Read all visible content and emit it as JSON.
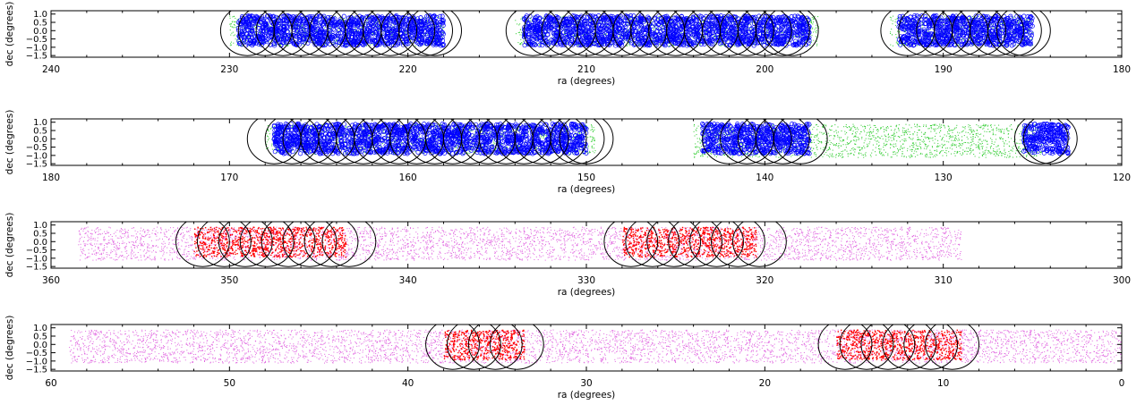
{
  "chart_data": [
    {
      "type": "scatter",
      "xlabel": "ra (degrees)",
      "ylabel": "dec (degrees)",
      "xlim": [
        240,
        180
      ],
      "ylim": [
        -1.6,
        1.2
      ],
      "x_ticks": [
        240,
        230,
        220,
        210,
        200,
        190,
        180
      ],
      "y_ticks": [
        1.0,
        0.5,
        0.0,
        -0.5,
        -1.0,
        -1.5
      ],
      "y_tick_labels": [
        "1.0",
        "0.5",
        "0.0",
        "−0.5",
        "−1.0",
        "−1.5"
      ],
      "background_fields": [
        {
          "ra_min": 218,
          "ra_max": 230,
          "dec_min": -0.9,
          "dec_max": 0.9,
          "color": "#2ecc2e"
        },
        {
          "ra_min": 197,
          "ra_max": 214,
          "dec_min": -0.9,
          "dec_max": 0.9,
          "color": "#2ecc2e"
        },
        {
          "ra_min": 185,
          "ra_max": 193,
          "dec_min": -0.9,
          "dec_max": 0.9,
          "color": "#2ecc2e"
        }
      ],
      "point_clusters": [
        {
          "ra_min": 218,
          "ra_max": 229.5,
          "dec_min": -0.9,
          "dec_max": 0.9,
          "color": "#0000ff",
          "style": "ring"
        },
        {
          "ra_min": 197.5,
          "ra_max": 213.5,
          "dec_min": -0.9,
          "dec_max": 0.9,
          "color": "#0000ff",
          "style": "ring"
        },
        {
          "ra_min": 185,
          "ra_max": 192.5,
          "dec_min": -0.9,
          "dec_max": 0.9,
          "color": "#0000ff",
          "style": "ring"
        }
      ],
      "circle_radius_deg": 1.5,
      "circles_ra": [
        229,
        228,
        227,
        226,
        225,
        224,
        223,
        222,
        221,
        220,
        219,
        218.5,
        213,
        212,
        211,
        210,
        209,
        208,
        207,
        206,
        205,
        204,
        203,
        202,
        201,
        200,
        199,
        198.5,
        192,
        191,
        190,
        189,
        188,
        187,
        186,
        185.5
      ]
    },
    {
      "type": "scatter",
      "xlabel": "ra (degrees)",
      "ylabel": "dec (degrees)",
      "xlim": [
        180,
        120
      ],
      "ylim": [
        -1.6,
        1.2
      ],
      "x_ticks": [
        180,
        170,
        160,
        150,
        140,
        130,
        120
      ],
      "y_ticks": [
        1.0,
        0.5,
        0.0,
        -0.5,
        -1.0,
        -1.5
      ],
      "y_tick_labels": [
        "1.0",
        "0.5",
        "0.0",
        "−0.5",
        "−1.0",
        "−1.5"
      ],
      "background_fields": [
        {
          "ra_min": 149.5,
          "ra_max": 168,
          "dec_min": -0.9,
          "dec_max": 0.9,
          "color": "#2ecc2e"
        },
        {
          "ra_min": 124.5,
          "ra_max": 144,
          "dec_min": -1.1,
          "dec_max": 0.9,
          "color": "#2ecc2e"
        }
      ],
      "point_clusters": [
        {
          "ra_min": 150,
          "ra_max": 167.5,
          "dec_min": -0.9,
          "dec_max": 0.9,
          "color": "#0000ff",
          "style": "ring"
        },
        {
          "ra_min": 137.5,
          "ra_max": 143.5,
          "dec_min": -0.9,
          "dec_max": 0.9,
          "color": "#0000ff",
          "style": "ring"
        },
        {
          "ra_min": 123,
          "ra_max": 125.5,
          "dec_min": -0.9,
          "dec_max": 0.9,
          "color": "#0000ff",
          "style": "ring"
        }
      ],
      "circle_radius_deg": 1.5,
      "circles_ra": [
        167.5,
        166.5,
        165.5,
        164.5,
        163.5,
        162.5,
        161.5,
        160.5,
        159.5,
        158.5,
        157.5,
        156.5,
        155.5,
        154.5,
        153.5,
        152.5,
        151.5,
        150.5,
        150,
        142,
        141,
        140,
        139,
        138,
        124.5,
        124
      ]
    },
    {
      "type": "scatter",
      "xlabel": "ra (degrees)",
      "ylabel": "dec (degrees)",
      "xlim": [
        360,
        300
      ],
      "ylim": [
        -1.6,
        1.2
      ],
      "x_ticks": [
        360,
        350,
        340,
        330,
        320,
        310,
        300
      ],
      "y_ticks": [
        1.0,
        0.5,
        0.0,
        -0.5,
        -1.0,
        -1.5
      ],
      "y_tick_labels": [
        "1.0",
        "0.5",
        "0.0",
        "−0.5",
        "−1.0",
        "−1.5"
      ],
      "background_fields": [
        {
          "ra_min": 309,
          "ra_max": 358.5,
          "dec_min": -1.1,
          "dec_max": 0.9,
          "color": "#e066e0"
        }
      ],
      "point_clusters": [
        {
          "ra_min": 343.5,
          "ra_max": 352,
          "dec_min": -0.9,
          "dec_max": 0.9,
          "color": "#ff0000",
          "style": "dot"
        },
        {
          "ra_min": 320.5,
          "ra_max": 328,
          "dec_min": -0.9,
          "dec_max": 0.9,
          "color": "#ff0000",
          "style": "dot"
        }
      ],
      "circle_radius_deg": 1.5,
      "circles_ra": [
        351.5,
        350.3,
        349.1,
        347.9,
        346.7,
        345.5,
        344.3,
        343.3,
        327.5,
        326.3,
        325.1,
        323.9,
        322.7,
        321.5,
        320.3
      ]
    },
    {
      "type": "scatter",
      "xlabel": "ra (degrees)",
      "ylabel": "dec (degrees)",
      "xlim": [
        60,
        0
      ],
      "ylim": [
        -1.6,
        1.2
      ],
      "x_ticks": [
        60,
        50,
        40,
        30,
        20,
        10,
        0
      ],
      "y_ticks": [
        1.0,
        0.5,
        0.0,
        -0.5,
        -1.0,
        -1.5
      ],
      "y_tick_labels": [
        "1.0",
        "0.5",
        "0.0",
        "−0.5",
        "−1.0",
        "−1.5"
      ],
      "background_fields": [
        {
          "ra_min": 0,
          "ra_max": 59,
          "dec_min": -1.1,
          "dec_max": 0.9,
          "color": "#e066e0"
        }
      ],
      "point_clusters": [
        {
          "ra_min": 33.5,
          "ra_max": 38,
          "dec_min": -0.9,
          "dec_max": 0.9,
          "color": "#ff0000",
          "style": "dot"
        },
        {
          "ra_min": 9,
          "ra_max": 16,
          "dec_min": -0.9,
          "dec_max": 0.9,
          "color": "#ff0000",
          "style": "dot"
        }
      ],
      "circle_radius_deg": 1.5,
      "circles_ra": [
        37.5,
        36.3,
        35.1,
        33.9,
        15.5,
        14.3,
        13.1,
        11.9,
        10.7,
        9.5
      ]
    }
  ]
}
